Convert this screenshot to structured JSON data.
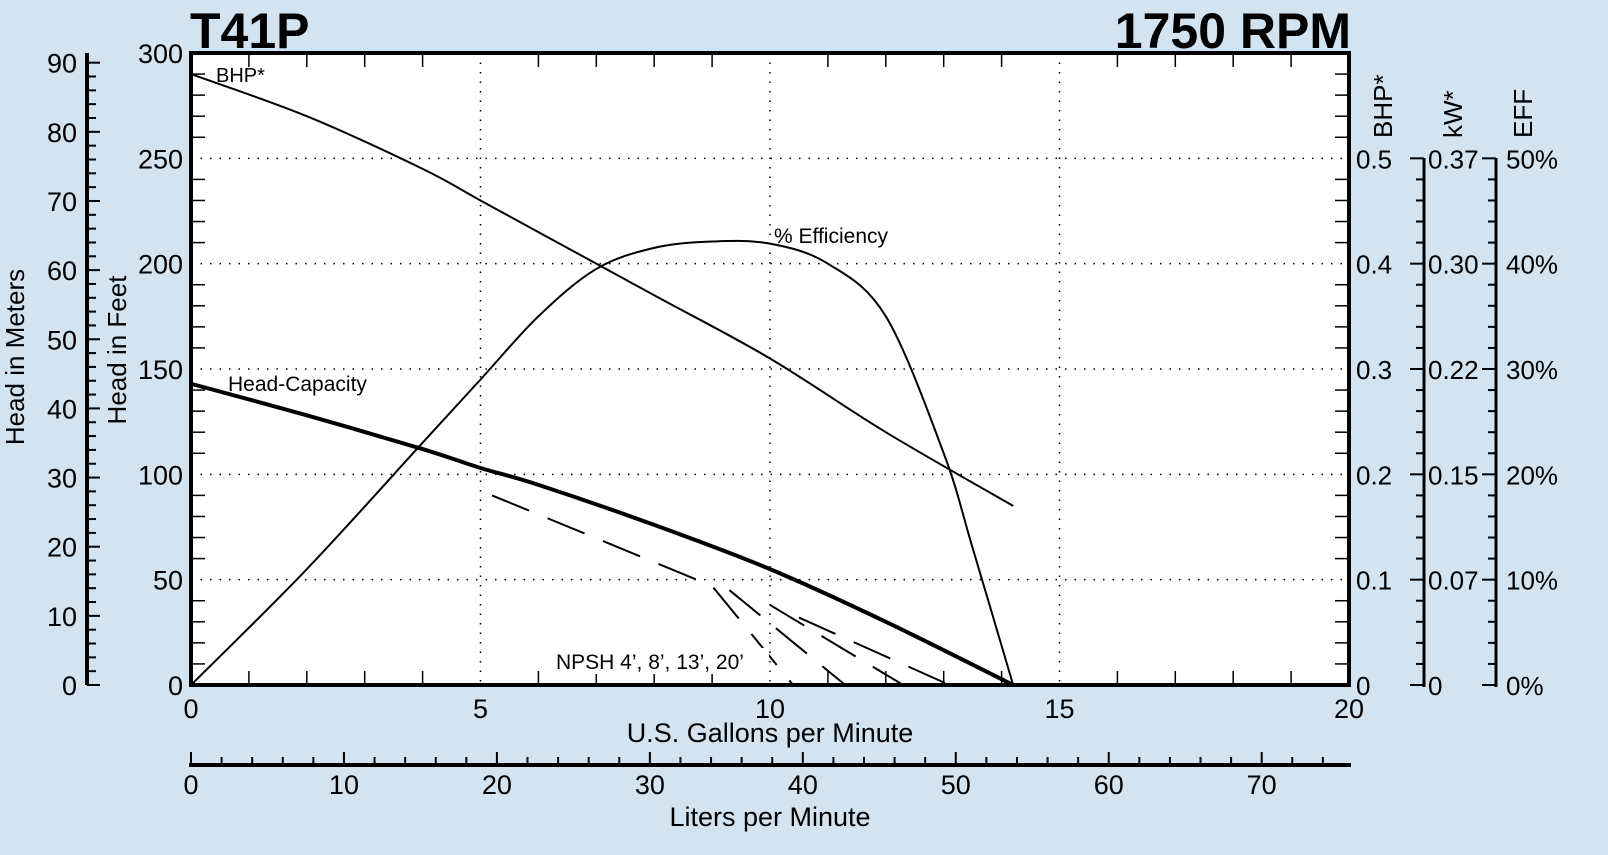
{
  "header": {
    "model": "T41P",
    "speed": "1750 RPM"
  },
  "axes": {
    "left_meters": {
      "label": "Head in Meters",
      "ticks": [
        "0",
        "10",
        "20",
        "30",
        "40",
        "50",
        "60",
        "70",
        "80",
        "90"
      ]
    },
    "left_feet": {
      "label": "Head in Feet",
      "ticks": [
        "0",
        "50",
        "100",
        "150",
        "200",
        "250",
        "300"
      ]
    },
    "bottom_gpm": {
      "label": "U.S. Gallons per Minute",
      "ticks": [
        "0",
        "5",
        "10",
        "15",
        "20"
      ]
    },
    "bottom_lpm": {
      "label": "Liters per Minute",
      "ticks": [
        "0",
        "10",
        "20",
        "30",
        "40",
        "50",
        "60",
        "70"
      ]
    },
    "right_bhp": {
      "label": "BHP*",
      "ticks": [
        "0",
        "0.1",
        "0.2",
        "0.3",
        "0.4",
        "0.5"
      ]
    },
    "right_kw": {
      "label": "kW*",
      "ticks": [
        "0",
        "0.07",
        "0.15",
        "0.22",
        "0.30",
        "0.37"
      ]
    },
    "right_eff": {
      "label": "EFF",
      "ticks": [
        "0%",
        "10%",
        "20%",
        "30%",
        "40%",
        "50%"
      ]
    }
  },
  "annotations": {
    "bhp": "BHP*",
    "head_capacity": "Head-Capacity",
    "efficiency": "% Efficiency",
    "npsh": "NPSH 4’, 8’, 13’, 20’"
  },
  "chart_data": {
    "type": "line",
    "title": "T41P 1750 RPM",
    "xlabel": "U.S. Gallons per Minute",
    "xlabel_secondary": "Liters per Minute",
    "ylabel": "Head in Feet",
    "ylabel_secondary": "Head in Meters",
    "y2labels": [
      "BHP*",
      "kW*",
      "EFF"
    ],
    "xlim": [
      0,
      20
    ],
    "ylim": [
      0,
      300
    ],
    "y_meters_lim": [
      0,
      91.4
    ],
    "bhp_lim": [
      0,
      0.6
    ],
    "eff_lim": [
      0,
      0.6
    ],
    "grid": true,
    "series": [
      {
        "name": "Head-Capacity",
        "unit": "ft",
        "style": "solid-thick",
        "x": [
          0,
          2,
          4,
          5,
          6,
          8,
          10,
          12,
          14.2
        ],
        "y": [
          143,
          128,
          112,
          103,
          95,
          76,
          55,
          30,
          0
        ]
      },
      {
        "name": "BHP*",
        "unit": "hp",
        "style": "solid",
        "x": [
          0,
          2,
          4,
          5,
          6,
          8,
          10,
          12,
          14.2
        ],
        "y": [
          0.58,
          0.54,
          0.49,
          0.46,
          0.43,
          0.37,
          0.31,
          0.24,
          0.17
        ]
      },
      {
        "name": "% Efficiency",
        "unit": "%",
        "style": "solid",
        "x": [
          0,
          2,
          4,
          5,
          6,
          7,
          8,
          9,
          10,
          11,
          12,
          13,
          13.5,
          14.2
        ],
        "y": [
          0,
          11,
          23,
          29,
          35,
          39.5,
          41.5,
          42.1,
          41.9,
          40,
          35,
          22,
          13,
          0
        ]
      },
      {
        "name": "NPSH 4'",
        "unit": "ft",
        "style": "dashed",
        "x": [
          5.2,
          9.0,
          10.4
        ],
        "y": [
          90,
          47,
          0
        ]
      },
      {
        "name": "NPSH 8'",
        "unit": "ft",
        "style": "dashed",
        "x": [
          9.3,
          11.3
        ],
        "y": [
          45,
          0
        ]
      },
      {
        "name": "NPSH 13'",
        "unit": "ft",
        "style": "dashed",
        "x": [
          10.0,
          12.3
        ],
        "y": [
          38,
          0
        ]
      },
      {
        "name": "NPSH 20'",
        "unit": "ft",
        "style": "dashed",
        "x": [
          10.5,
          13.1
        ],
        "y": [
          32,
          0
        ]
      }
    ],
    "annotations": [
      "BHP*",
      "Head-Capacity",
      "% Efficiency",
      "NPSH 4’, 8’, 13’, 20’"
    ]
  }
}
